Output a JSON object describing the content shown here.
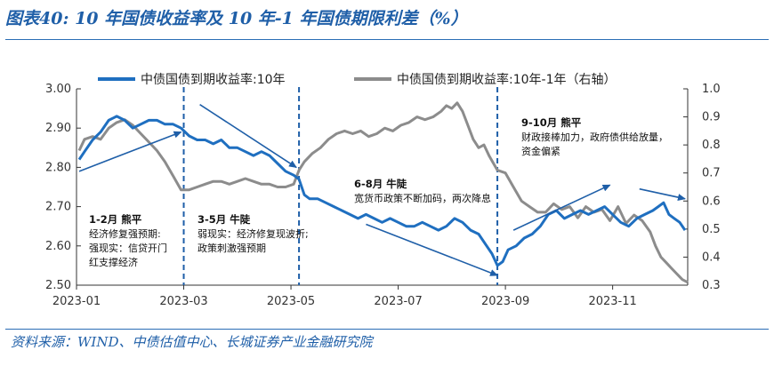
{
  "header": {
    "title": "图表40:  10 年国债收益率及 10 年-1 年国债期限利差（%）"
  },
  "footer": {
    "source": "资料来源：WIND、中债估值中心、长城证券产业金融研究院"
  },
  "chart_data": {
    "type": "line",
    "legend": [
      {
        "name": "中债国债到期收益率:10年",
        "color": "#1f6fc0",
        "axis": "left"
      },
      {
        "name": "中债国债到期收益率:10年-1年（右轴）",
        "color": "#8c8c8c",
        "axis": "right"
      }
    ],
    "x_range": [
      0,
      11.4
    ],
    "x_ticks": [
      {
        "x": 0,
        "label": "2023-01"
      },
      {
        "x": 2,
        "label": "2023-03"
      },
      {
        "x": 4,
        "label": "2023-05"
      },
      {
        "x": 6,
        "label": "2023-07"
      },
      {
        "x": 8,
        "label": "2023-09"
      },
      {
        "x": 10,
        "label": "2023-11"
      }
    ],
    "y_left": {
      "min": 2.5,
      "max": 3.0,
      "ticks": [
        "3.00",
        "2.90",
        "2.80",
        "2.70",
        "2.60",
        "2.50"
      ]
    },
    "y_right": {
      "min": 0.3,
      "max": 1.0,
      "ticks": [
        "1.0",
        "0.9",
        "0.8",
        "0.7",
        "0.6",
        "0.5",
        "0.4",
        "0.3"
      ]
    },
    "series": [
      {
        "name": "中债国债到期收益率:10年",
        "axis": "left",
        "color": "#1f6fc0",
        "points": [
          [
            0.05,
            2.82
          ],
          [
            0.15,
            2.84
          ],
          [
            0.3,
            2.87
          ],
          [
            0.45,
            2.89
          ],
          [
            0.6,
            2.92
          ],
          [
            0.75,
            2.93
          ],
          [
            0.9,
            2.92
          ],
          [
            1.05,
            2.9
          ],
          [
            1.2,
            2.91
          ],
          [
            1.35,
            2.92
          ],
          [
            1.5,
            2.92
          ],
          [
            1.65,
            2.91
          ],
          [
            1.8,
            2.91
          ],
          [
            1.95,
            2.9
          ],
          [
            2.1,
            2.88
          ],
          [
            2.25,
            2.87
          ],
          [
            2.4,
            2.87
          ],
          [
            2.55,
            2.86
          ],
          [
            2.7,
            2.87
          ],
          [
            2.85,
            2.85
          ],
          [
            3.0,
            2.85
          ],
          [
            3.15,
            2.84
          ],
          [
            3.3,
            2.83
          ],
          [
            3.45,
            2.84
          ],
          [
            3.6,
            2.83
          ],
          [
            3.75,
            2.81
          ],
          [
            3.9,
            2.79
          ],
          [
            4.05,
            2.78
          ],
          [
            4.15,
            2.77
          ],
          [
            4.25,
            2.73
          ],
          [
            4.35,
            2.72
          ],
          [
            4.5,
            2.72
          ],
          [
            4.65,
            2.71
          ],
          [
            4.8,
            2.7
          ],
          [
            4.95,
            2.69
          ],
          [
            5.1,
            2.68
          ],
          [
            5.25,
            2.67
          ],
          [
            5.4,
            2.68
          ],
          [
            5.55,
            2.67
          ],
          [
            5.7,
            2.66
          ],
          [
            5.85,
            2.67
          ],
          [
            6.0,
            2.66
          ],
          [
            6.15,
            2.65
          ],
          [
            6.3,
            2.65
          ],
          [
            6.45,
            2.66
          ],
          [
            6.6,
            2.65
          ],
          [
            6.75,
            2.64
          ],
          [
            6.9,
            2.65
          ],
          [
            7.05,
            2.67
          ],
          [
            7.2,
            2.66
          ],
          [
            7.35,
            2.64
          ],
          [
            7.5,
            2.63
          ],
          [
            7.65,
            2.6
          ],
          [
            7.75,
            2.58
          ],
          [
            7.85,
            2.55
          ],
          [
            7.95,
            2.56
          ],
          [
            8.05,
            2.59
          ],
          [
            8.2,
            2.6
          ],
          [
            8.35,
            2.62
          ],
          [
            8.5,
            2.63
          ],
          [
            8.65,
            2.65
          ],
          [
            8.8,
            2.68
          ],
          [
            8.95,
            2.69
          ],
          [
            9.1,
            2.67
          ],
          [
            9.25,
            2.68
          ],
          [
            9.4,
            2.69
          ],
          [
            9.55,
            2.68
          ],
          [
            9.7,
            2.69
          ],
          [
            9.85,
            2.7
          ],
          [
            10.0,
            2.68
          ],
          [
            10.15,
            2.66
          ],
          [
            10.3,
            2.65
          ],
          [
            10.45,
            2.67
          ],
          [
            10.6,
            2.68
          ],
          [
            10.75,
            2.69
          ],
          [
            10.85,
            2.7
          ],
          [
            10.95,
            2.71
          ],
          [
            11.05,
            2.68
          ],
          [
            11.15,
            2.67
          ],
          [
            11.25,
            2.66
          ],
          [
            11.35,
            2.64
          ]
        ]
      },
      {
        "name": "中债国债到期收益率:10年-1年（右轴）",
        "axis": "right",
        "color": "#8c8c8c",
        "points": [
          [
            0.05,
            0.78
          ],
          [
            0.15,
            0.82
          ],
          [
            0.3,
            0.83
          ],
          [
            0.45,
            0.82
          ],
          [
            0.6,
            0.86
          ],
          [
            0.75,
            0.88
          ],
          [
            0.9,
            0.89
          ],
          [
            1.05,
            0.87
          ],
          [
            1.2,
            0.84
          ],
          [
            1.35,
            0.81
          ],
          [
            1.5,
            0.78
          ],
          [
            1.65,
            0.74
          ],
          [
            1.8,
            0.69
          ],
          [
            1.95,
            0.64
          ],
          [
            2.1,
            0.64
          ],
          [
            2.25,
            0.65
          ],
          [
            2.4,
            0.66
          ],
          [
            2.55,
            0.67
          ],
          [
            2.7,
            0.67
          ],
          [
            2.85,
            0.66
          ],
          [
            3.0,
            0.67
          ],
          [
            3.15,
            0.68
          ],
          [
            3.3,
            0.67
          ],
          [
            3.45,
            0.66
          ],
          [
            3.6,
            0.66
          ],
          [
            3.75,
            0.65
          ],
          [
            3.9,
            0.65
          ],
          [
            4.05,
            0.66
          ],
          [
            4.15,
            0.71
          ],
          [
            4.25,
            0.74
          ],
          [
            4.4,
            0.77
          ],
          [
            4.55,
            0.79
          ],
          [
            4.7,
            0.82
          ],
          [
            4.85,
            0.84
          ],
          [
            5.0,
            0.85
          ],
          [
            5.15,
            0.84
          ],
          [
            5.3,
            0.85
          ],
          [
            5.45,
            0.83
          ],
          [
            5.6,
            0.84
          ],
          [
            5.75,
            0.86
          ],
          [
            5.9,
            0.85
          ],
          [
            6.05,
            0.87
          ],
          [
            6.2,
            0.88
          ],
          [
            6.35,
            0.9
          ],
          [
            6.5,
            0.89
          ],
          [
            6.65,
            0.9
          ],
          [
            6.8,
            0.92
          ],
          [
            6.9,
            0.94
          ],
          [
            7.0,
            0.93
          ],
          [
            7.1,
            0.95
          ],
          [
            7.2,
            0.92
          ],
          [
            7.3,
            0.87
          ],
          [
            7.4,
            0.82
          ],
          [
            7.5,
            0.79
          ],
          [
            7.6,
            0.8
          ],
          [
            7.7,
            0.76
          ],
          [
            7.85,
            0.71
          ],
          [
            8.0,
            0.7
          ],
          [
            8.15,
            0.65
          ],
          [
            8.3,
            0.6
          ],
          [
            8.45,
            0.58
          ],
          [
            8.6,
            0.56
          ],
          [
            8.75,
            0.56
          ],
          [
            8.9,
            0.59
          ],
          [
            9.05,
            0.57
          ],
          [
            9.2,
            0.58
          ],
          [
            9.35,
            0.54
          ],
          [
            9.5,
            0.58
          ],
          [
            9.65,
            0.56
          ],
          [
            9.8,
            0.57
          ],
          [
            9.95,
            0.53
          ],
          [
            10.1,
            0.58
          ],
          [
            10.25,
            0.52
          ],
          [
            10.4,
            0.55
          ],
          [
            10.55,
            0.53
          ],
          [
            10.7,
            0.49
          ],
          [
            10.8,
            0.44
          ],
          [
            10.9,
            0.4
          ],
          [
            11.0,
            0.38
          ],
          [
            11.1,
            0.36
          ],
          [
            11.2,
            0.34
          ],
          [
            11.3,
            0.32
          ],
          [
            11.4,
            0.31
          ]
        ]
      }
    ],
    "dividers": [
      2.0,
      4.15,
      7.85
    ],
    "arrows": [
      {
        "from": [
          0.05,
          2.79
        ],
        "to": [
          1.95,
          2.89
        ]
      },
      {
        "from": [
          2.3,
          2.96
        ],
        "to": [
          4.1,
          2.8
        ]
      },
      {
        "from": [
          5.4,
          2.655
        ],
        "to": [
          7.85,
          2.525
        ]
      },
      {
        "from": [
          8.15,
          2.64
        ],
        "to": [
          9.95,
          2.755
        ]
      },
      {
        "from": [
          10.5,
          2.745
        ],
        "to": [
          11.35,
          2.72
        ]
      }
    ],
    "annotations": [
      {
        "lines": [
          "1-2月 熊平",
          "经济修复强预期:",
          "强现实：信贷开门",
          "红支撑经济"
        ]
      },
      {
        "lines": [
          "3-5月 牛陡",
          "弱现实：经济修复现波折;",
          "政策刺激强预期"
        ]
      },
      {
        "lines": [
          "6-8月 牛陡",
          "宽货币政策不断加码，两次降息"
        ]
      },
      {
        "lines": [
          "9-10月 熊平",
          "财政接棒加力，政府债供给放量，",
          "资金偏紧"
        ]
      }
    ]
  }
}
